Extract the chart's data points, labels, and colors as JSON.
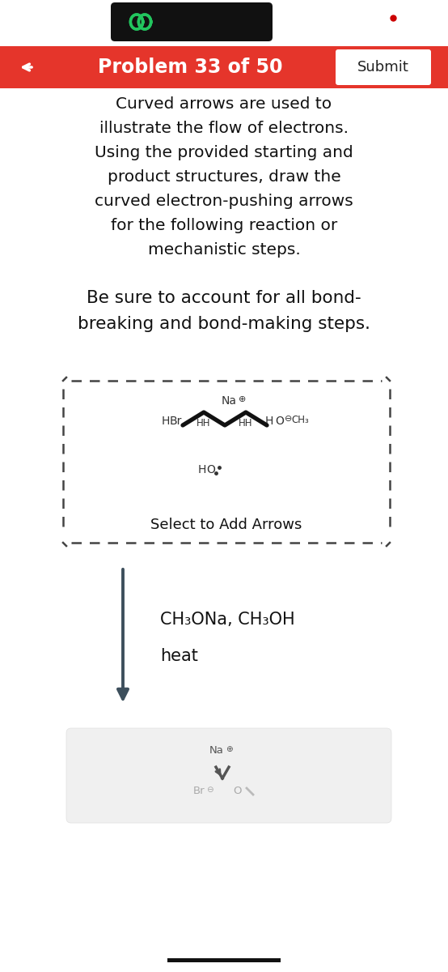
{
  "bg_color": "#ffffff",
  "header_bar_color": "#111111",
  "header_icon_color": "#22c55e",
  "red_bar_color": "#e5352b",
  "title_text": "Problem 33 of 50",
  "submit_text": "Submit",
  "instruction_lines": [
    "Curved arrows are used to",
    "illustrate the flow of electrons.",
    "Using the provided starting and",
    "product structures, draw the",
    "curved electron-pushing arrows",
    "for the following reaction or",
    "mechanistic steps."
  ],
  "bond_line1": "Be sure to account for all bond-",
  "bond_line2": "breaking and bond-making steps.",
  "arrow_label1": "CH₃ONa, CH₃OH",
  "arrow_label2": "heat",
  "select_text": "Select to Add Arrows",
  "dashed_box_color": "#444444",
  "molecule_color": "#333333",
  "bottom_panel_color": "#f0f0f0",
  "red_dot_color": "#cc0000",
  "arrow_body_color": "#3d4f5c"
}
